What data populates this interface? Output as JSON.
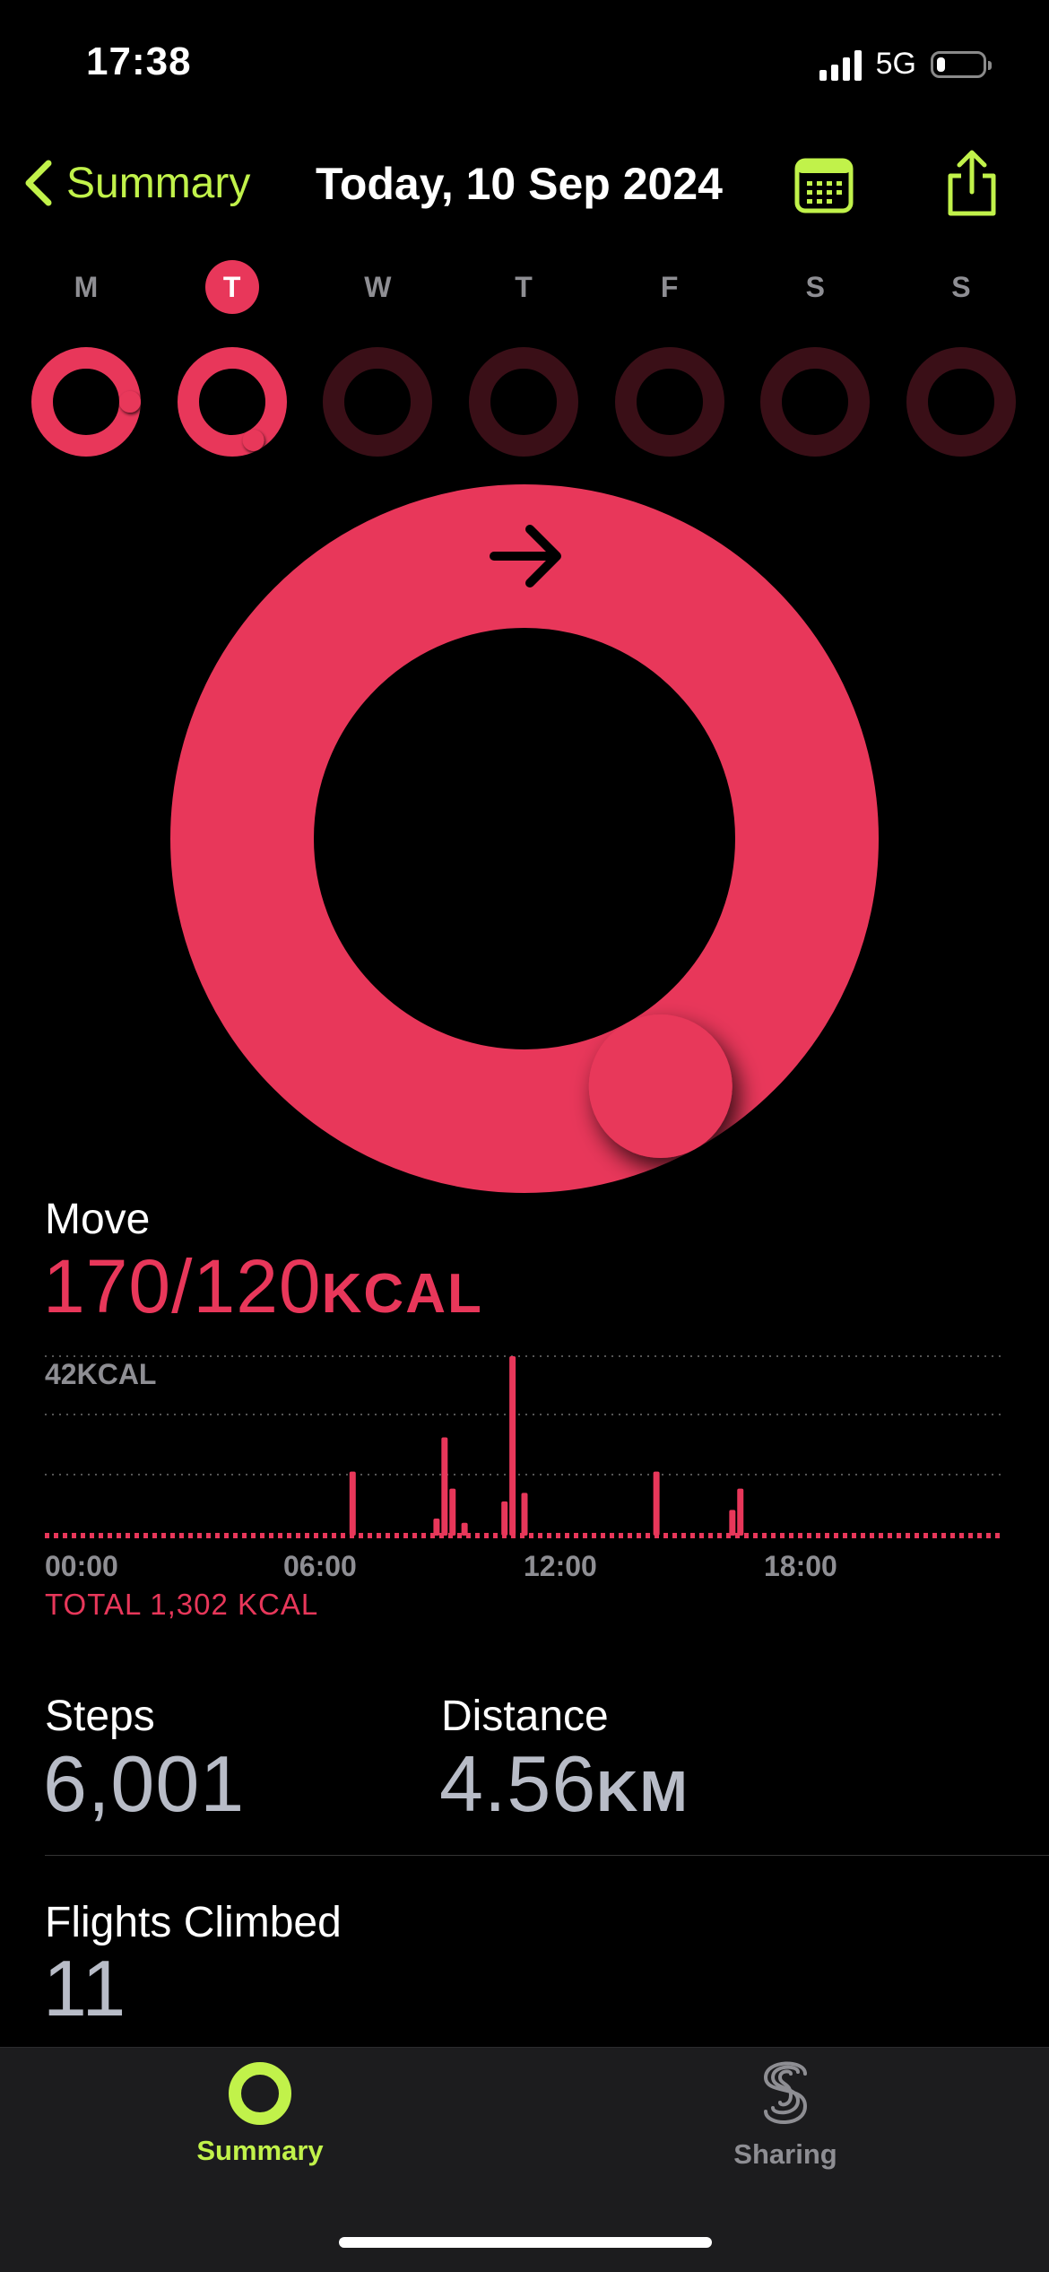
{
  "status_bar": {
    "time": "17:38",
    "network": "5G",
    "battery_level": 0.2
  },
  "nav": {
    "back_label": "Summary",
    "title": "Today, 10 Sep 2024",
    "calendar_icon": "calendar-icon",
    "share_icon": "share-icon"
  },
  "week": {
    "days": [
      {
        "letter": "M",
        "progress": 1.25,
        "today": false
      },
      {
        "letter": "T",
        "progress": 1.42,
        "today": true
      },
      {
        "letter": "W",
        "progress": 0,
        "today": false
      },
      {
        "letter": "T",
        "progress": 0,
        "today": false
      },
      {
        "letter": "F",
        "progress": 0,
        "today": false
      },
      {
        "letter": "S",
        "progress": 0,
        "today": false
      },
      {
        "letter": "S",
        "progress": 0,
        "today": false
      }
    ]
  },
  "ring": {
    "progress": 1.42,
    "color": "#e8375a"
  },
  "move": {
    "label": "Move",
    "value": "170/120",
    "unit": "KCAL",
    "chart_max_label": "42KCAL",
    "total": "TOTAL 1,302 KCAL",
    "x_ticks": [
      "00:00",
      "06:00",
      "12:00",
      "18:00"
    ]
  },
  "chart_data": {
    "type": "bar",
    "title": "",
    "ylabel": "",
    "ymax": 42,
    "x_range_hours": [
      0,
      24
    ],
    "x": [
      7.7,
      9.8,
      10.0,
      10.2,
      10.5,
      11.5,
      11.7,
      12.0,
      15.3,
      17.2,
      17.4
    ],
    "values": [
      15,
      4,
      23,
      11,
      3,
      8,
      42,
      10,
      15,
      6,
      11
    ],
    "color": "#e8375a"
  },
  "stats": {
    "steps_label": "Steps",
    "steps_value": "6,001",
    "distance_label": "Distance",
    "distance_value": "4.56",
    "distance_unit": "KM",
    "flights_label": "Flights Climbed",
    "flights_value": "11"
  },
  "tabs": [
    {
      "label": "Summary",
      "icon": "activity-rings-icon",
      "active": true
    },
    {
      "label": "Sharing",
      "icon": "sharing-icon",
      "active": false
    }
  ],
  "colors": {
    "accent": "#c1f24a",
    "move": "#e8375a",
    "inactive": "#8e8e93"
  }
}
